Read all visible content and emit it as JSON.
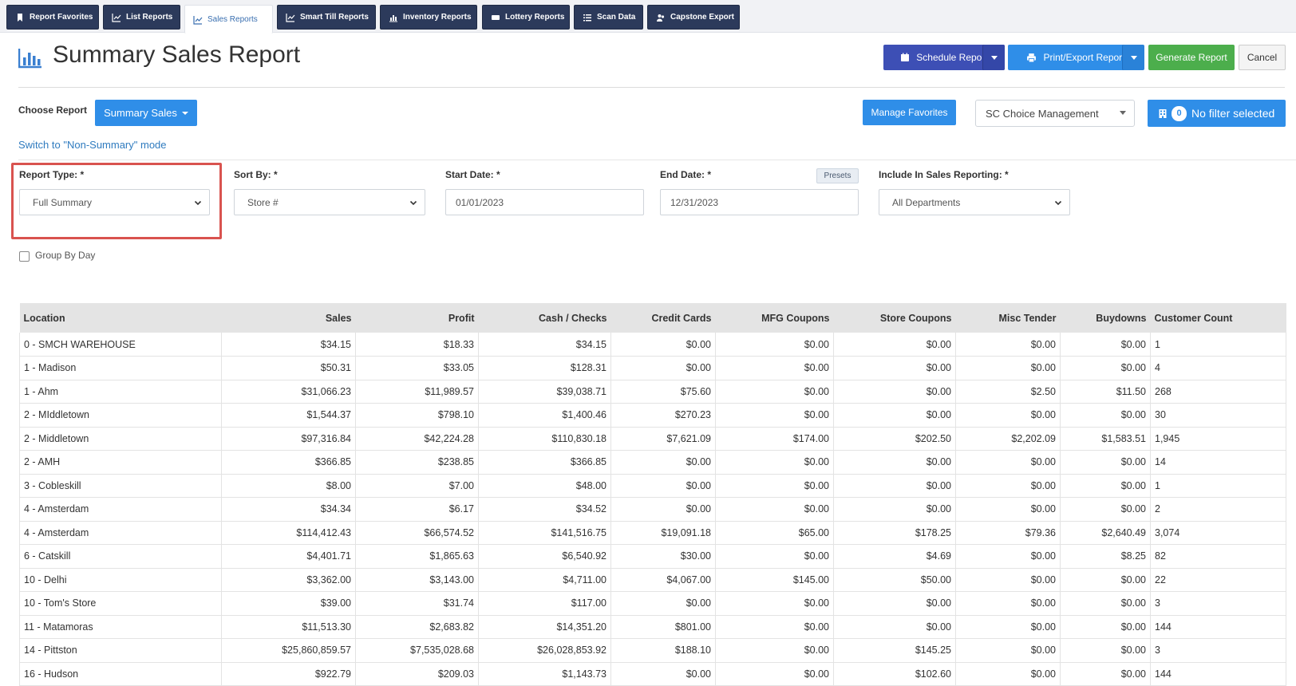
{
  "tabs": [
    {
      "label": "Report Favorites",
      "icon": "bookmark-icon"
    },
    {
      "label": "List Reports",
      "icon": "line-chart-icon"
    },
    {
      "label": "Sales Reports",
      "icon": "line-chart-icon",
      "active": true
    },
    {
      "label": "Smart Till Reports",
      "icon": "line-chart-icon"
    },
    {
      "label": "Inventory Reports",
      "icon": "bar-chart-icon"
    },
    {
      "label": "Lottery Reports",
      "icon": "ticket-icon"
    },
    {
      "label": "Scan Data",
      "icon": "list-icon"
    },
    {
      "label": "Capstone Export",
      "icon": "users-icon"
    }
  ],
  "header": {
    "title": "Summary Sales Report",
    "schedule_label": "Schedule Report",
    "print_label": "Print/Export Report",
    "generate_label": "Generate Report",
    "cancel_label": "Cancel"
  },
  "choose": {
    "label": "Choose Report",
    "report_button": "Summary Sales",
    "switch_link": "Switch to \"Non-Summary\" mode",
    "manage_favorites": "Manage Favorites",
    "org_select": "SC Choice Management",
    "filter_count": "0",
    "filter_label": "No filter selected"
  },
  "filters": {
    "report_type_label": "Report Type: *",
    "report_type_value": "Full Summary",
    "sort_by_label": "Sort By: *",
    "sort_by_value": "Store #",
    "start_date_label": "Start Date: *",
    "start_date_value": "01/01/2023",
    "end_date_label": "End Date: *",
    "end_date_value": "12/31/2023",
    "presets_label": "Presets",
    "include_label": "Include In Sales Reporting: *",
    "include_value": "All Departments",
    "group_by_day_label": "Group By Day"
  },
  "colors": {
    "tab_dark": "#2c3a5b",
    "schedule": "#3d4fb5",
    "print": "#2f8ee8",
    "generate": "#4cae4c",
    "primary_blue": "#2f8ee8",
    "highlight": "#d9534f"
  },
  "table": {
    "columns": [
      "Location",
      "Sales",
      "Profit",
      "Cash / Checks",
      "Credit Cards",
      "MFG Coupons",
      "Store Coupons",
      "Misc Tender",
      "Buydowns",
      "Customer Count"
    ],
    "rows": [
      [
        "0 - SMCH WAREHOUSE",
        "$34.15",
        "$18.33",
        "$34.15",
        "$0.00",
        "$0.00",
        "$0.00",
        "$0.00",
        "$0.00",
        "1"
      ],
      [
        "1 - Madison",
        "$50.31",
        "$33.05",
        "$128.31",
        "$0.00",
        "$0.00",
        "$0.00",
        "$0.00",
        "$0.00",
        "4"
      ],
      [
        "1 - Ahm",
        "$31,066.23",
        "$11,989.57",
        "$39,038.71",
        "$75.60",
        "$0.00",
        "$0.00",
        "$2.50",
        "$11.50",
        "268"
      ],
      [
        "2 - MIddletown",
        "$1,544.37",
        "$798.10",
        "$1,400.46",
        "$270.23",
        "$0.00",
        "$0.00",
        "$0.00",
        "$0.00",
        "30"
      ],
      [
        "2 - Middletown",
        "$97,316.84",
        "$42,224.28",
        "$110,830.18",
        "$7,621.09",
        "$174.00",
        "$202.50",
        "$2,202.09",
        "$1,583.51",
        "1,945"
      ],
      [
        "2 - AMH",
        "$366.85",
        "$238.85",
        "$366.85",
        "$0.00",
        "$0.00",
        "$0.00",
        "$0.00",
        "$0.00",
        "14"
      ],
      [
        "3 - Cobleskill",
        "$8.00",
        "$7.00",
        "$48.00",
        "$0.00",
        "$0.00",
        "$0.00",
        "$0.00",
        "$0.00",
        "1"
      ],
      [
        "4 - Amsterdam",
        "$34.34",
        "$6.17",
        "$34.52",
        "$0.00",
        "$0.00",
        "$0.00",
        "$0.00",
        "$0.00",
        "2"
      ],
      [
        "4 - Amsterdam",
        "$114,412.43",
        "$66,574.52",
        "$141,516.75",
        "$19,091.18",
        "$65.00",
        "$178.25",
        "$79.36",
        "$2,640.49",
        "3,074"
      ],
      [
        "6 - Catskill",
        "$4,401.71",
        "$1,865.63",
        "$6,540.92",
        "$30.00",
        "$0.00",
        "$4.69",
        "$0.00",
        "$8.25",
        "82"
      ],
      [
        "10 - Delhi",
        "$3,362.00",
        "$3,143.00",
        "$4,711.00",
        "$4,067.00",
        "$145.00",
        "$50.00",
        "$0.00",
        "$0.00",
        "22"
      ],
      [
        "10 - Tom's Store",
        "$39.00",
        "$31.74",
        "$117.00",
        "$0.00",
        "$0.00",
        "$0.00",
        "$0.00",
        "$0.00",
        "3"
      ],
      [
        "11 - Matamoras",
        "$11,513.30",
        "$2,683.82",
        "$14,351.20",
        "$801.00",
        "$0.00",
        "$0.00",
        "$0.00",
        "$0.00",
        "144"
      ],
      [
        "14 - Pittston",
        "$25,860,859.57",
        "$7,535,028.68",
        "$26,028,853.92",
        "$188.10",
        "$0.00",
        "$145.25",
        "$0.00",
        "$0.00",
        "3"
      ],
      [
        "16 - Hudson",
        "$922.79",
        "$209.03",
        "$1,143.73",
        "$0.00",
        "$0.00",
        "$102.60",
        "$0.00",
        "$0.00",
        "144"
      ]
    ]
  }
}
